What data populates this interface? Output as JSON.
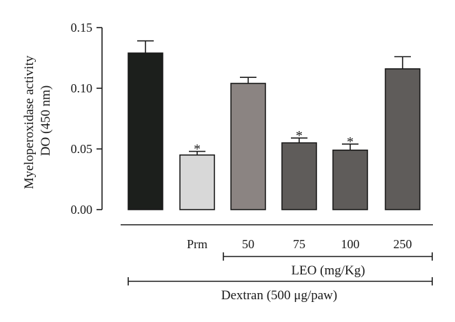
{
  "chart_data": {
    "type": "bar",
    "ylabel_lines": [
      "Myeloperoxidase activity",
      "DO (450 nm)"
    ],
    "ylim": [
      0,
      0.15
    ],
    "yticks": [
      0,
      0.05,
      0.1,
      0.15
    ],
    "ytick_labels": [
      "0.00",
      "0.05",
      "0.10",
      "0.15"
    ],
    "categories": [
      "",
      "Prm",
      "50",
      "75",
      "100",
      "250"
    ],
    "values": [
      0.129,
      0.045,
      0.104,
      0.055,
      0.049,
      0.116
    ],
    "errors": [
      0.01,
      0.003,
      0.005,
      0.004,
      0.005,
      0.01
    ],
    "significant": [
      false,
      true,
      false,
      true,
      true,
      false
    ],
    "significance_marker": "*",
    "colors": [
      "#1c1f1c",
      "#d8d8d8",
      "#8b8482",
      "#5f5c5a",
      "#5f5c5a",
      "#5f5c5a"
    ],
    "groups": [
      {
        "label": "LEO (mg/Kg)",
        "from_index": 2,
        "to_index": 5
      },
      {
        "label": "Dextran (500 μg/paw)",
        "from_index": 0,
        "to_index": 5
      }
    ]
  }
}
